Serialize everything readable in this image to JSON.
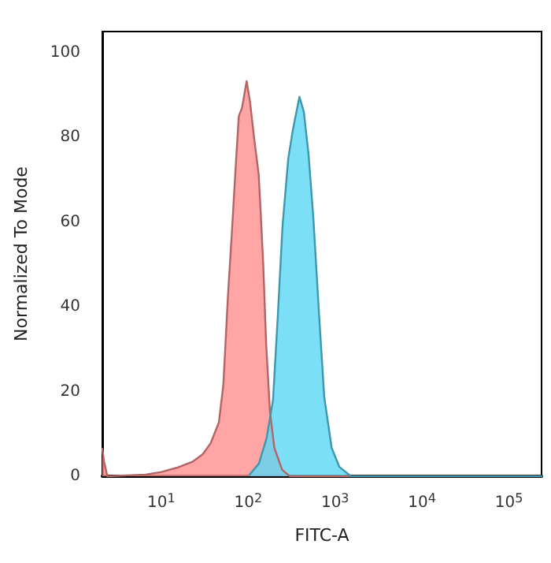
{
  "chart_data": {
    "type": "area",
    "xlabel": "FITC-A",
    "ylabel": "Normalized To Mode",
    "log": "x",
    "grid": false,
    "marker": "none",
    "xlim": [
      2.1,
      237000
    ],
    "xticks": [
      {
        "value": 10,
        "label": "10$^{1}$"
      },
      {
        "value": 100,
        "label": "10$^{2}$"
      },
      {
        "value": 1000,
        "label": "10$^{3}$"
      },
      {
        "value": 10000,
        "label": "10$^{4}$"
      },
      {
        "value": 100000,
        "label": "10$^{5}$"
      }
    ],
    "ylim": [
      0,
      105
    ],
    "yticks": [
      0,
      20,
      40,
      60,
      80,
      100
    ],
    "series": [
      {
        "color": "#ff8f8f",
        "x": [
          2.1,
          2.2,
          2.4,
          6.6,
          10,
          15,
          22.8,
          30,
          37,
          46,
          51.8,
          58.5,
          66,
          72,
          78,
          85,
          96,
          105,
          117,
          132,
          139,
          149,
          161,
          178,
          200,
          246,
          302,
          237000
        ],
        "values": [
          6.5,
          3.4,
          0,
          0.4,
          1,
          2,
          3.4,
          5.2,
          7.8,
          12.7,
          21.6,
          42.5,
          60,
          73.5,
          85,
          87,
          93.3,
          88.4,
          79.9,
          71.3,
          62.7,
          50,
          31.3,
          15.3,
          6.7,
          1.5,
          0,
          0
        ]
      },
      {
        "color": "#5ad8f5",
        "x": [
          104,
          133,
          163,
          193,
          219,
          248,
          289,
          328,
          389,
          437,
          495,
          562,
          656,
          750,
          913,
          1120,
          1520,
          237000
        ],
        "values": [
          0.4,
          3,
          9,
          18,
          37.7,
          58.9,
          75,
          82,
          89.6,
          86,
          76,
          61,
          37.7,
          18.7,
          6.7,
          2.2,
          0,
          0
        ]
      }
    ]
  }
}
